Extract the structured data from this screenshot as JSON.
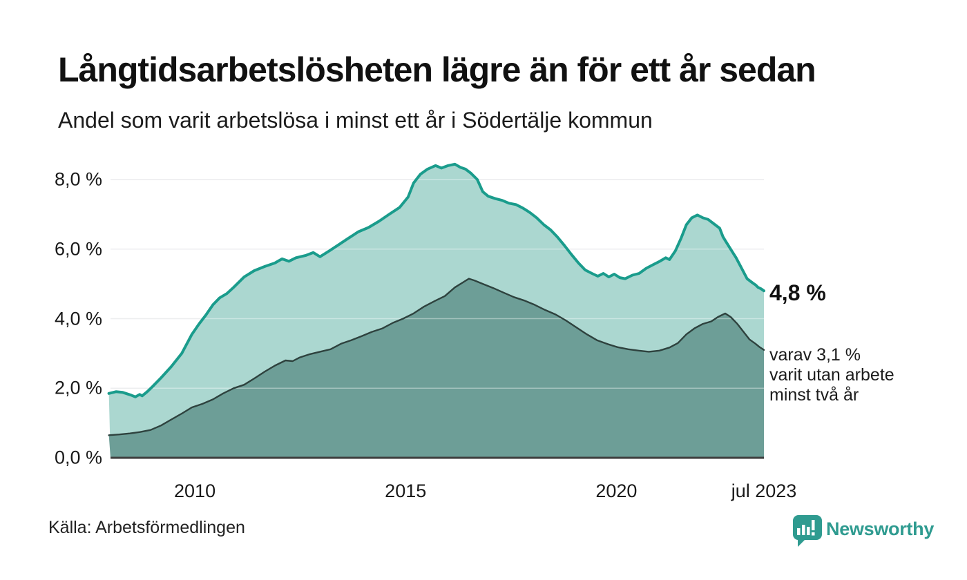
{
  "title": "Långtidsarbetslösheten lägre än för ett år sedan",
  "subtitle": "Andel som varit arbetslösa i minst ett år i Södertälje kommun",
  "source": "Källa: Arbetsförmedlingen",
  "brand": {
    "name": "Newsworthy",
    "color": "#2f9b90"
  },
  "annotations": {
    "latest_value": "4,8 %",
    "note_lines": [
      "varav 3,1 %",
      "varit utan arbete",
      "minst två år"
    ]
  },
  "colors": {
    "series1_line": "#1a9c8c",
    "series1_fill": "#abd7d0",
    "series2_line": "#2e423e",
    "series2_fill": "#6d9e97",
    "gridline": "#e3e4e6",
    "gridline_overlay": "rgba(255,255,255,0.38)",
    "baseline": "#3d3d3d",
    "text": "#191919"
  },
  "chart_data": {
    "type": "area",
    "title": "Långtidsarbetslösheten lägre än för ett år sedan",
    "subtitle": "Andel som varit arbetslösa i minst ett år i Södertälje kommun",
    "x_unit": "decimal_year",
    "xlim": [
      2008.0,
      2023.5
    ],
    "ylim": [
      0,
      8
    ],
    "grid": true,
    "legend": "none",
    "y_ticks": [
      {
        "value": 0,
        "label": "0,0 %"
      },
      {
        "value": 2,
        "label": "2,0 %"
      },
      {
        "value": 4,
        "label": "4,0 %"
      },
      {
        "value": 6,
        "label": "6,0 %"
      },
      {
        "value": 8,
        "label": "8,0 %"
      }
    ],
    "x_ticks": [
      {
        "value": 2010,
        "label": "2010"
      },
      {
        "value": 2015,
        "label": "2015"
      },
      {
        "value": 2020,
        "label": "2020"
      },
      {
        "value": 2023.5,
        "label": "jul 2023"
      }
    ],
    "series": [
      {
        "name": "Andel arbetslösa minst ett år",
        "end_value_label": "4,8 %",
        "points": [
          [
            2007.96,
            1.85
          ],
          [
            2008.13,
            1.9
          ],
          [
            2008.29,
            1.88
          ],
          [
            2008.49,
            1.8
          ],
          [
            2008.59,
            1.75
          ],
          [
            2008.69,
            1.82
          ],
          [
            2008.75,
            1.78
          ],
          [
            2008.87,
            1.9
          ],
          [
            2009.0,
            2.05
          ],
          [
            2009.2,
            2.3
          ],
          [
            2009.44,
            2.62
          ],
          [
            2009.69,
            3.0
          ],
          [
            2009.93,
            3.55
          ],
          [
            2010.1,
            3.85
          ],
          [
            2010.26,
            4.1
          ],
          [
            2010.43,
            4.4
          ],
          [
            2010.59,
            4.6
          ],
          [
            2010.76,
            4.72
          ],
          [
            2010.92,
            4.9
          ],
          [
            2011.17,
            5.2
          ],
          [
            2011.41,
            5.38
          ],
          [
            2011.66,
            5.5
          ],
          [
            2011.9,
            5.6
          ],
          [
            2012.07,
            5.72
          ],
          [
            2012.23,
            5.65
          ],
          [
            2012.4,
            5.75
          ],
          [
            2012.64,
            5.82
          ],
          [
            2012.81,
            5.9
          ],
          [
            2012.97,
            5.78
          ],
          [
            2013.19,
            5.95
          ],
          [
            2013.38,
            6.1
          ],
          [
            2013.63,
            6.3
          ],
          [
            2013.88,
            6.5
          ],
          [
            2014.12,
            6.62
          ],
          [
            2014.37,
            6.8
          ],
          [
            2014.61,
            7.0
          ],
          [
            2014.86,
            7.2
          ],
          [
            2015.06,
            7.5
          ],
          [
            2015.19,
            7.9
          ],
          [
            2015.35,
            8.15
          ],
          [
            2015.52,
            8.3
          ],
          [
            2015.71,
            8.4
          ],
          [
            2015.85,
            8.33
          ],
          [
            2016.01,
            8.4
          ],
          [
            2016.17,
            8.44
          ],
          [
            2016.3,
            8.35
          ],
          [
            2016.42,
            8.3
          ],
          [
            2016.55,
            8.18
          ],
          [
            2016.7,
            8.0
          ],
          [
            2016.83,
            7.65
          ],
          [
            2016.96,
            7.52
          ],
          [
            2017.13,
            7.45
          ],
          [
            2017.29,
            7.4
          ],
          [
            2017.45,
            7.32
          ],
          [
            2017.62,
            7.28
          ],
          [
            2017.78,
            7.18
          ],
          [
            2017.95,
            7.05
          ],
          [
            2018.11,
            6.9
          ],
          [
            2018.28,
            6.7
          ],
          [
            2018.44,
            6.55
          ],
          [
            2018.6,
            6.35
          ],
          [
            2018.77,
            6.1
          ],
          [
            2018.93,
            5.85
          ],
          [
            2019.1,
            5.6
          ],
          [
            2019.26,
            5.4
          ],
          [
            2019.42,
            5.3
          ],
          [
            2019.56,
            5.22
          ],
          [
            2019.69,
            5.3
          ],
          [
            2019.82,
            5.2
          ],
          [
            2019.95,
            5.28
          ],
          [
            2020.08,
            5.18
          ],
          [
            2020.21,
            5.15
          ],
          [
            2020.38,
            5.25
          ],
          [
            2020.54,
            5.3
          ],
          [
            2020.71,
            5.45
          ],
          [
            2020.87,
            5.55
          ],
          [
            2021.03,
            5.65
          ],
          [
            2021.17,
            5.75
          ],
          [
            2021.26,
            5.7
          ],
          [
            2021.4,
            5.95
          ],
          [
            2021.53,
            6.3
          ],
          [
            2021.66,
            6.7
          ],
          [
            2021.79,
            6.9
          ],
          [
            2021.92,
            6.98
          ],
          [
            2022.05,
            6.9
          ],
          [
            2022.18,
            6.85
          ],
          [
            2022.32,
            6.72
          ],
          [
            2022.45,
            6.6
          ],
          [
            2022.53,
            6.35
          ],
          [
            2022.58,
            6.25
          ],
          [
            2022.71,
            6.0
          ],
          [
            2022.84,
            5.75
          ],
          [
            2022.97,
            5.45
          ],
          [
            2023.1,
            5.15
          ],
          [
            2023.23,
            5.03
          ],
          [
            2023.3,
            4.97
          ],
          [
            2023.36,
            4.9
          ],
          [
            2023.43,
            4.86
          ],
          [
            2023.5,
            4.8
          ]
        ]
      },
      {
        "name": "Andel arbetslösa minst två år",
        "end_value_label": "3,1 %",
        "points": [
          [
            2007.96,
            0.65
          ],
          [
            2008.21,
            0.67
          ],
          [
            2008.46,
            0.7
          ],
          [
            2008.7,
            0.74
          ],
          [
            2008.95,
            0.8
          ],
          [
            2009.2,
            0.93
          ],
          [
            2009.44,
            1.1
          ],
          [
            2009.69,
            1.27
          ],
          [
            2009.93,
            1.45
          ],
          [
            2010.18,
            1.55
          ],
          [
            2010.43,
            1.68
          ],
          [
            2010.67,
            1.85
          ],
          [
            2010.92,
            2.0
          ],
          [
            2011.17,
            2.1
          ],
          [
            2011.41,
            2.28
          ],
          [
            2011.66,
            2.48
          ],
          [
            2011.9,
            2.65
          ],
          [
            2012.15,
            2.8
          ],
          [
            2012.32,
            2.78
          ],
          [
            2012.48,
            2.88
          ],
          [
            2012.73,
            2.98
          ],
          [
            2012.97,
            3.05
          ],
          [
            2013.22,
            3.12
          ],
          [
            2013.47,
            3.28
          ],
          [
            2013.71,
            3.38
          ],
          [
            2013.96,
            3.5
          ],
          [
            2014.2,
            3.62
          ],
          [
            2014.45,
            3.72
          ],
          [
            2014.7,
            3.88
          ],
          [
            2014.94,
            4.0
          ],
          [
            2015.19,
            4.15
          ],
          [
            2015.44,
            4.35
          ],
          [
            2015.68,
            4.5
          ],
          [
            2015.93,
            4.65
          ],
          [
            2016.17,
            4.9
          ],
          [
            2016.37,
            5.05
          ],
          [
            2016.5,
            5.15
          ],
          [
            2016.63,
            5.1
          ],
          [
            2016.83,
            5.0
          ],
          [
            2017.08,
            4.88
          ],
          [
            2017.32,
            4.75
          ],
          [
            2017.57,
            4.62
          ],
          [
            2017.82,
            4.52
          ],
          [
            2018.06,
            4.4
          ],
          [
            2018.31,
            4.25
          ],
          [
            2018.56,
            4.12
          ],
          [
            2018.8,
            3.95
          ],
          [
            2019.05,
            3.75
          ],
          [
            2019.3,
            3.55
          ],
          [
            2019.54,
            3.38
          ],
          [
            2019.79,
            3.27
          ],
          [
            2020.03,
            3.18
          ],
          [
            2020.28,
            3.12
          ],
          [
            2020.53,
            3.08
          ],
          [
            2020.77,
            3.05
          ],
          [
            2021.02,
            3.08
          ],
          [
            2021.26,
            3.17
          ],
          [
            2021.46,
            3.3
          ],
          [
            2021.66,
            3.55
          ],
          [
            2021.85,
            3.72
          ],
          [
            2022.05,
            3.85
          ],
          [
            2022.25,
            3.92
          ],
          [
            2022.41,
            4.05
          ],
          [
            2022.58,
            4.15
          ],
          [
            2022.71,
            4.05
          ],
          [
            2022.87,
            3.85
          ],
          [
            2023.03,
            3.6
          ],
          [
            2023.16,
            3.4
          ],
          [
            2023.3,
            3.28
          ],
          [
            2023.4,
            3.18
          ],
          [
            2023.5,
            3.1
          ]
        ]
      }
    ]
  }
}
